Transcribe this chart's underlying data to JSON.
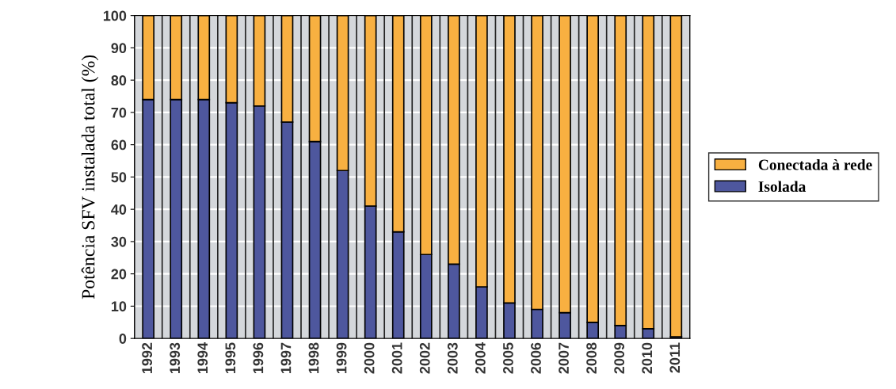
{
  "chart_data": {
    "type": "bar",
    "stacked": true,
    "ylabel": "Potência SFV instalada total (%)",
    "categories": [
      "1992",
      "1993",
      "1994",
      "1995",
      "1996",
      "1997",
      "1998",
      "1999",
      "2000",
      "2001",
      "2002",
      "2003",
      "2004",
      "2005",
      "2006",
      "2007",
      "2008",
      "2009",
      "2010",
      "2011"
    ],
    "series": [
      {
        "name": "Isolada",
        "color": "#4e579e",
        "values": [
          74,
          74,
          74,
          73,
          72,
          67,
          61,
          52,
          41,
          33,
          26,
          23,
          16,
          11,
          9,
          8,
          5,
          4,
          3,
          0.5
        ]
      },
      {
        "name": "Conectada à rede",
        "color": "#f8b041",
        "values": [
          26,
          26,
          26,
          27,
          28,
          33,
          39,
          48,
          59,
          67,
          74,
          77,
          84,
          89,
          91,
          92,
          95,
          96,
          97,
          99.5
        ]
      }
    ],
    "ylim": [
      0,
      100
    ],
    "yticks": [
      0,
      10,
      20,
      30,
      40,
      50,
      60,
      70,
      80,
      90,
      100
    ],
    "grid": true,
    "legend": "right"
  }
}
